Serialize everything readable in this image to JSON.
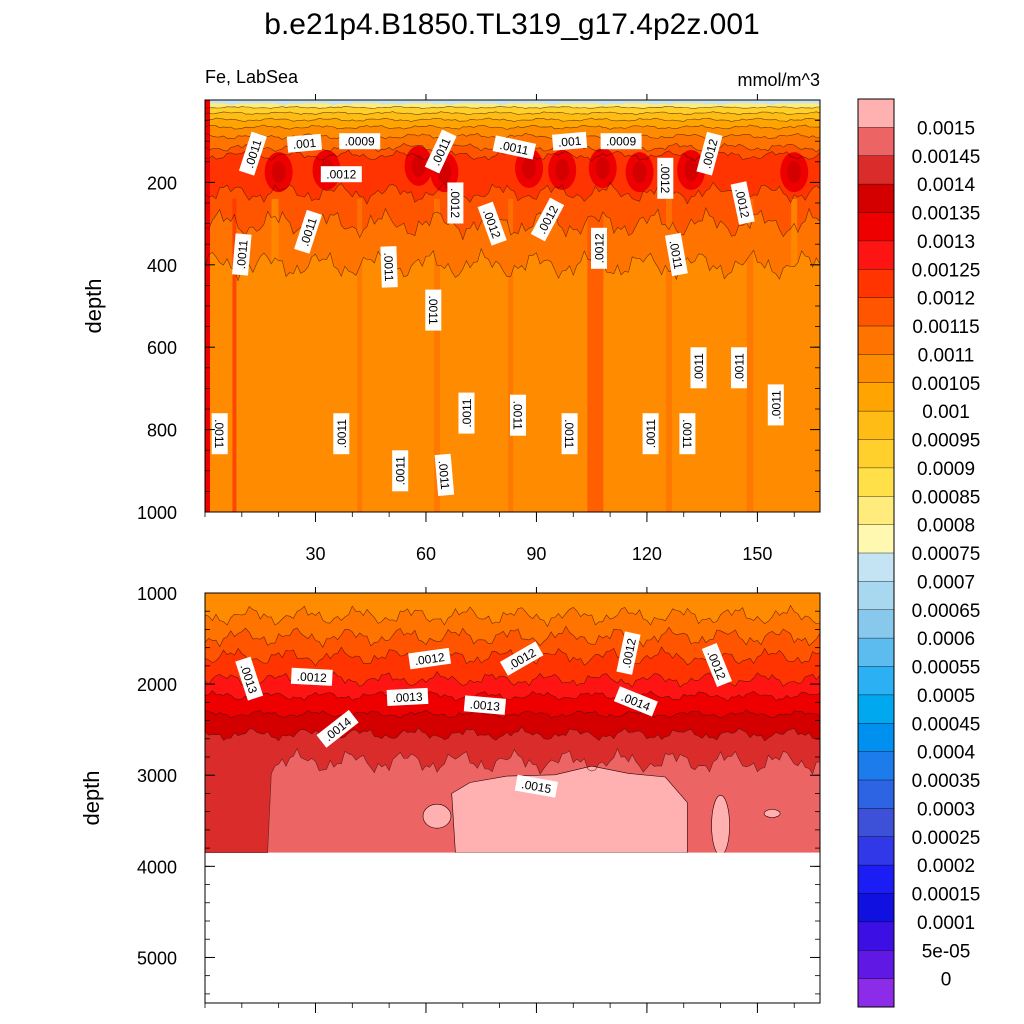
{
  "chart_data": {
    "type": "heatmap",
    "title": "b.e21p4.B1850.TL319_g17.4p2z.001",
    "region_label": "Fe, LabSea",
    "units": "mmol/m^3",
    "x_ticks": [
      "30",
      "60",
      "90",
      "120",
      "150"
    ],
    "x_range": [
      0,
      167
    ],
    "panels": [
      {
        "name": "upper",
        "ylabel": "depth",
        "y_range": [
          0,
          1000
        ],
        "y_ticks": [
          "200",
          "400",
          "600",
          "800",
          "1000"
        ],
        "contour_labels": [
          {
            "text": ".0011",
            "x": 13,
            "y": 130,
            "rot": -72
          },
          {
            "text": ".001",
            "x": 27,
            "y": 105,
            "rot": -5
          },
          {
            "text": ".0009",
            "x": 42,
            "y": 100,
            "rot": 0
          },
          {
            "text": ".0011",
            "x": 64,
            "y": 125,
            "rot": -65
          },
          {
            "text": ".0011",
            "x": 84,
            "y": 115,
            "rot": 12
          },
          {
            "text": ".001",
            "x": 99,
            "y": 100,
            "rot": -5
          },
          {
            "text": ".0009",
            "x": 113,
            "y": 100,
            "rot": 0
          },
          {
            "text": ".0012",
            "x": 137,
            "y": 130,
            "rot": -75
          },
          {
            "text": ".0012",
            "x": 37,
            "y": 180,
            "rot": 0
          },
          {
            "text": ".0012",
            "x": 125,
            "y": 190,
            "rot": 90
          },
          {
            "text": ".0012",
            "x": 68,
            "y": 250,
            "rot": 90
          },
          {
            "text": ".0012",
            "x": 78,
            "y": 300,
            "rot": 70
          },
          {
            "text": ".0012",
            "x": 93,
            "y": 290,
            "rot": -62
          },
          {
            "text": ".0012",
            "x": 146,
            "y": 250,
            "rot": 78
          },
          {
            "text": ".0011",
            "x": 28,
            "y": 320,
            "rot": -72
          },
          {
            "text": ".0011",
            "x": 10,
            "y": 375,
            "rot": -85
          },
          {
            "text": ".0012",
            "x": 107,
            "y": 360,
            "rot": -90
          },
          {
            "text": ".0011",
            "x": 128,
            "y": 375,
            "rot": 80
          },
          {
            "text": ".0011",
            "x": 50,
            "y": 405,
            "rot": 88
          },
          {
            "text": ".0011",
            "x": 62,
            "y": 510,
            "rot": 90
          },
          {
            "text": ".0011",
            "x": 134,
            "y": 650,
            "rot": -90
          },
          {
            "text": ".0011",
            "x": 145,
            "y": 650,
            "rot": -90
          },
          {
            "text": ".0011",
            "x": 71,
            "y": 760,
            "rot": -90
          },
          {
            "text": ".0011",
            "x": 85,
            "y": 765,
            "rot": 90
          },
          {
            "text": ".0011",
            "x": 155,
            "y": 740,
            "rot": -90
          },
          {
            "text": ".0011",
            "x": 4,
            "y": 810,
            "rot": 90
          },
          {
            "text": ".0011",
            "x": 37,
            "y": 810,
            "rot": -90
          },
          {
            "text": ".0011",
            "x": 99,
            "y": 810,
            "rot": 90
          },
          {
            "text": ".0011",
            "x": 121,
            "y": 810,
            "rot": -90
          },
          {
            "text": ".0011",
            "x": 131,
            "y": 810,
            "rot": 90
          },
          {
            "text": ".0011",
            "x": 53,
            "y": 900,
            "rot": -90
          },
          {
            "text": ".0011",
            "x": 65,
            "y": 910,
            "rot": 85
          }
        ]
      },
      {
        "name": "lower",
        "ylabel": "depth",
        "y_range": [
          1000,
          5500
        ],
        "y_ticks": [
          "1000",
          "2000",
          "3000",
          "4000",
          "5000"
        ],
        "bottom_depth": 3850,
        "contour_labels": [
          {
            "text": ".0013",
            "x": 12,
            "y": 1940,
            "rot": 72
          },
          {
            "text": ".0012",
            "x": 29,
            "y": 1920,
            "rot": 3
          },
          {
            "text": ".0012",
            "x": 61,
            "y": 1720,
            "rot": -8
          },
          {
            "text": ".0012",
            "x": 86,
            "y": 1720,
            "rot": -30
          },
          {
            "text": ".0012",
            "x": 115,
            "y": 1660,
            "rot": -78
          },
          {
            "text": ".0012",
            "x": 139,
            "y": 1790,
            "rot": 68
          },
          {
            "text": ".0013",
            "x": 55,
            "y": 2140,
            "rot": -3
          },
          {
            "text": ".0013",
            "x": 76,
            "y": 2230,
            "rot": 5
          },
          {
            "text": ".0014",
            "x": 117,
            "y": 2190,
            "rot": 22
          },
          {
            "text": ".0014",
            "x": 36,
            "y": 2490,
            "rot": -38
          },
          {
            "text": ".0015",
            "x": 90,
            "y": 3120,
            "rot": 10
          }
        ]
      }
    ],
    "colorbar": {
      "levels": [
        "0.0015",
        "0.00145",
        "0.0014",
        "0.00135",
        "0.0013",
        "0.00125",
        "0.0012",
        "0.00115",
        "0.0011",
        "0.00105",
        "0.001",
        "0.00095",
        "0.0009",
        "0.00085",
        "0.0008",
        "0.00075",
        "0.0007",
        "0.00065",
        "0.0006",
        "0.00055",
        "0.0005",
        "0.00045",
        "0.0004",
        "0.00035",
        "0.0003",
        "0.00025",
        "0.0002",
        "0.00015",
        "0.0001",
        "5e-05",
        "0"
      ],
      "colors": [
        "#FFB0B0",
        "#EC6464",
        "#DB2C2C",
        "#D40000",
        "#EE0000",
        "#FF1414",
        "#FF3400",
        "#FF5400",
        "#FF7400",
        "#FF8C00",
        "#FFA400",
        "#FFBC14",
        "#FFD02C",
        "#FFE048",
        "#FFEC7C",
        "#FFF8B0",
        "#C4E4F4",
        "#A8D8F0",
        "#88C8EC",
        "#5CBCF0",
        "#2CB0F4",
        "#00A8F0",
        "#0090F0",
        "#1C7CEC",
        "#2C64E4",
        "#3C50D8",
        "#3038E8",
        "#1C1CF4",
        "#1010E0",
        "#3C10E4",
        "#6018E4",
        "#8C2CE8"
      ]
    }
  }
}
